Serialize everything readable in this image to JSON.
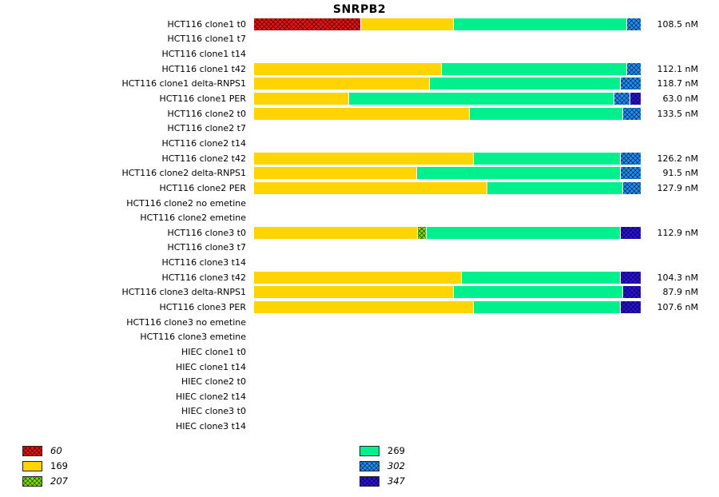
{
  "title": "SNRPB2",
  "chart_data": {
    "type": "bar",
    "orientation": "horizontal",
    "stacked": true,
    "title": "SNRPB2",
    "xlabel": "",
    "ylabel": "",
    "value_unit": "nM",
    "xlim_pct": [
      0,
      100
    ],
    "grid": false,
    "legend_position": "bottom",
    "series_colors": {
      "60": {
        "color": "#ee1111",
        "hatch": true,
        "italic": true
      },
      "169": {
        "color": "#ffd400",
        "hatch": false,
        "italic": false
      },
      "207": {
        "color": "#7fe000",
        "hatch": true,
        "italic": true
      },
      "269": {
        "color": "#00f08e",
        "hatch": false,
        "italic": false
      },
      "302": {
        "color": "#1e90ff",
        "hatch": true,
        "italic": true
      },
      "347": {
        "color": "#2a12e0",
        "hatch": true,
        "italic": true
      }
    },
    "legend_columns": [
      [
        "60",
        "169",
        "207"
      ],
      [
        "269",
        "302",
        "347"
      ]
    ],
    "rows": [
      {
        "label": "HCT116 clone1 t0",
        "value": "108.5 nM",
        "segments": [
          [
            "60",
            27.7
          ],
          [
            "169",
            23.8
          ],
          [
            "269",
            45.0
          ],
          [
            "302",
            3.5
          ]
        ]
      },
      {
        "label": "HCT116 clone1 t7",
        "value": "",
        "segments": []
      },
      {
        "label": "HCT116 clone1 t14",
        "value": "",
        "segments": []
      },
      {
        "label": "HCT116 clone1 t42",
        "value": "112.1 nM",
        "segments": [
          [
            "169",
            48.6
          ],
          [
            "269",
            47.9
          ],
          [
            "302",
            3.5
          ]
        ]
      },
      {
        "label": "HCT116 clone1 delta-RNPS1",
        "value": "118.7 nM",
        "segments": [
          [
            "169",
            45.5
          ],
          [
            "269",
            49.4
          ],
          [
            "302",
            5.1
          ]
        ]
      },
      {
        "label": "HCT116 clone1 PER",
        "value": "63.0 nM",
        "segments": [
          [
            "169",
            24.6
          ],
          [
            "269",
            68.8
          ],
          [
            "302",
            3.9
          ],
          [
            "347",
            2.7
          ]
        ]
      },
      {
        "label": "HCT116 clone2 t0",
        "value": "133.5 nM",
        "segments": [
          [
            "169",
            55.8
          ],
          [
            "269",
            39.7
          ],
          [
            "302",
            4.5
          ]
        ]
      },
      {
        "label": "HCT116 clone2 t7",
        "value": "",
        "segments": []
      },
      {
        "label": "HCT116 clone2 t14",
        "value": "",
        "segments": []
      },
      {
        "label": "HCT116 clone2 t42",
        "value": "126.2 nM",
        "segments": [
          [
            "169",
            56.8
          ],
          [
            "269",
            38.0
          ],
          [
            "302",
            5.2
          ]
        ]
      },
      {
        "label": "HCT116 clone2 delta-RNPS1",
        "value": "91.5 nM",
        "segments": [
          [
            "169",
            42.1
          ],
          [
            "269",
            52.7
          ],
          [
            "302",
            5.2
          ]
        ]
      },
      {
        "label": "HCT116 clone2 PER",
        "value": "127.9 nM",
        "segments": [
          [
            "169",
            60.3
          ],
          [
            "269",
            35.1
          ],
          [
            "302",
            4.6
          ]
        ]
      },
      {
        "label": "HCT116 clone2 no emetine",
        "value": "",
        "segments": []
      },
      {
        "label": "HCT116 clone2 emetine",
        "value": "",
        "segments": []
      },
      {
        "label": "HCT116 clone3 t0",
        "value": "112.9 nM",
        "segments": [
          [
            "169",
            42.4
          ],
          [
            "207",
            2.1
          ],
          [
            "269",
            50.4
          ],
          [
            "347",
            5.1
          ]
        ]
      },
      {
        "label": "HCT116 clone3 t7",
        "value": "",
        "segments": []
      },
      {
        "label": "HCT116 clone3 t14",
        "value": "",
        "segments": []
      },
      {
        "label": "HCT116 clone3 t42",
        "value": "104.3 nM",
        "segments": [
          [
            "169",
            53.7
          ],
          [
            "269",
            41.1
          ],
          [
            "347",
            5.2
          ]
        ]
      },
      {
        "label": "HCT116 clone3 delta-RNPS1",
        "value": "87.9 nM",
        "segments": [
          [
            "169",
            51.7
          ],
          [
            "269",
            43.8
          ],
          [
            "347",
            4.5
          ]
        ]
      },
      {
        "label": "HCT116 clone3 PER",
        "value": "107.6 nM",
        "segments": [
          [
            "169",
            56.8
          ],
          [
            "269",
            38.0
          ],
          [
            "347",
            5.2
          ]
        ]
      },
      {
        "label": "HCT116 clone3 no emetine",
        "value": "",
        "segments": []
      },
      {
        "label": "HCT116 clone3 emetine",
        "value": "",
        "segments": []
      },
      {
        "label": "HIEC clone1 t0",
        "value": "",
        "segments": []
      },
      {
        "label": "HIEC clone1 t14",
        "value": "",
        "segments": []
      },
      {
        "label": "HIEC clone2 t0",
        "value": "",
        "segments": []
      },
      {
        "label": "HIEC clone2 t14",
        "value": "",
        "segments": []
      },
      {
        "label": "HIEC clone3 t0",
        "value": "",
        "segments": []
      },
      {
        "label": "HIEC clone3 t14",
        "value": "",
        "segments": []
      }
    ]
  }
}
